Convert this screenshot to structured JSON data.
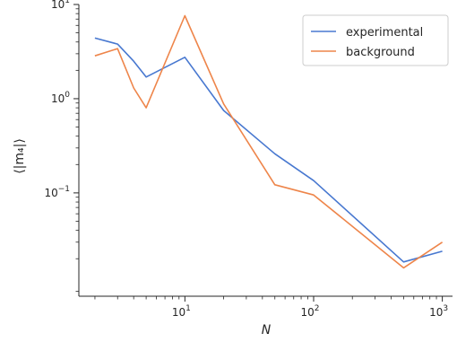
{
  "chart_data": {
    "type": "line",
    "xlabel": "N",
    "ylabel": "⟨|m₄|⟩",
    "xscale": "log",
    "yscale": "log",
    "xlim": [
      1.5,
      1200
    ],
    "ylim": [
      0.008,
      10
    ],
    "grid": false,
    "legend": "top-right",
    "x_ticks": [
      {
        "value": 10,
        "base": "10",
        "exp": "1"
      },
      {
        "value": 100,
        "base": "10",
        "exp": "2"
      },
      {
        "value": 1000,
        "base": "10",
        "exp": "3"
      }
    ],
    "y_ticks": [
      {
        "value": 10,
        "base": "10",
        "exp": "1"
      },
      {
        "value": 1,
        "base": "10",
        "exp": "0"
      },
      {
        "value": 0.1,
        "base": "10",
        "exp": "−1"
      }
    ],
    "series": [
      {
        "name": "experimental",
        "color": "#4878d0",
        "x": [
          2,
          3,
          4,
          5,
          10,
          20,
          50,
          100,
          500,
          1000
        ],
        "y": [
          4.4,
          3.8,
          2.5,
          1.7,
          2.75,
          0.75,
          0.26,
          0.135,
          0.0185,
          0.024
        ]
      },
      {
        "name": "background",
        "color": "#ee854a",
        "x": [
          2,
          3,
          4,
          5,
          10,
          20,
          50,
          100,
          500,
          1000
        ],
        "y": [
          2.85,
          3.4,
          1.3,
          0.8,
          7.6,
          0.88,
          0.122,
          0.095,
          0.016,
          0.03
        ]
      }
    ]
  }
}
